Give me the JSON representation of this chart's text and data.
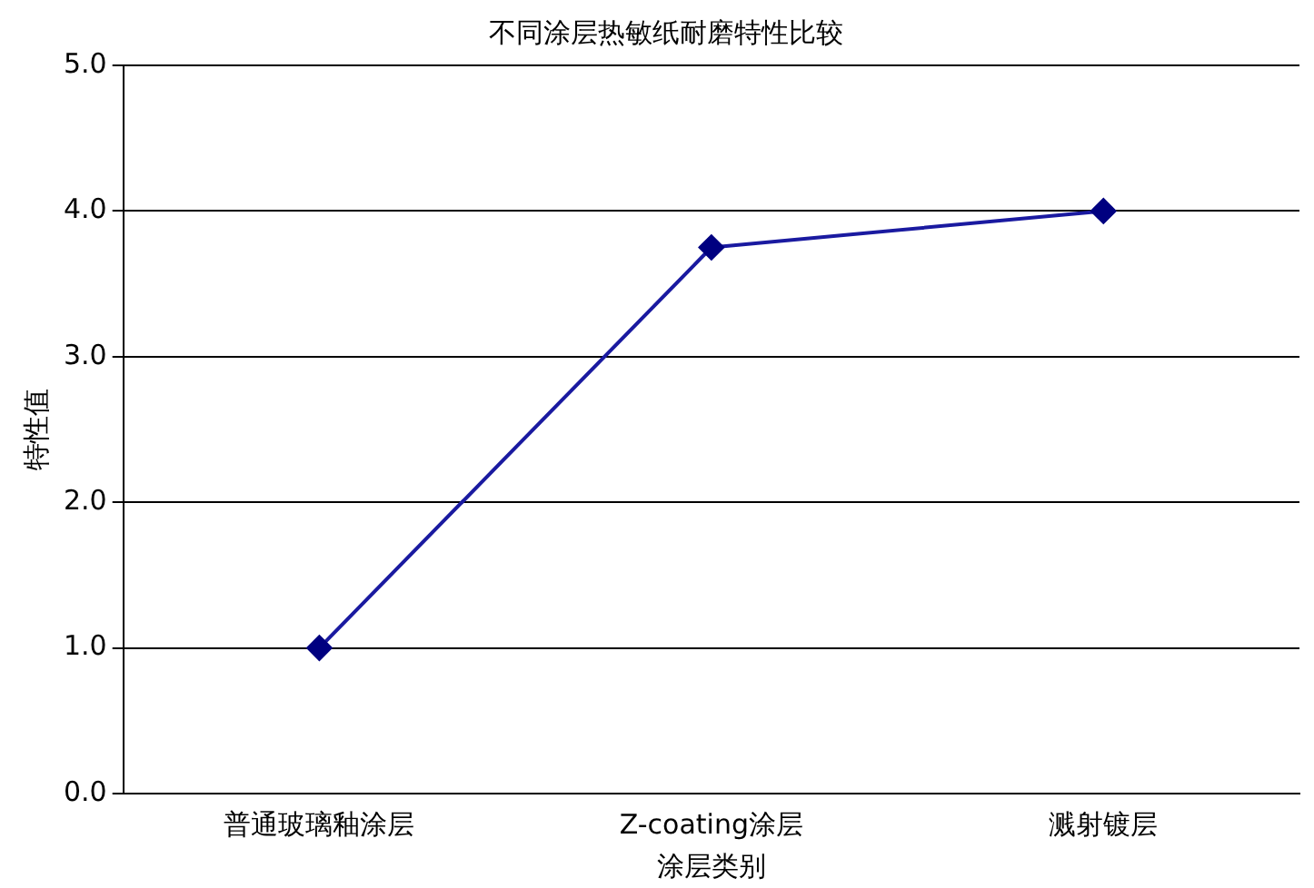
{
  "chart_data": {
    "type": "line",
    "title": "不同涂层热敏纸耐磨特性比较",
    "xlabel": "涂层类别",
    "ylabel": "特性值",
    "categories": [
      "普通玻璃釉涂层",
      "Z-coating涂层",
      "溅射镀层"
    ],
    "series": [
      {
        "color": "#1a1aa0",
        "values": [
          1.0,
          3.75,
          4.0
        ]
      }
    ],
    "ylim": [
      0,
      5
    ],
    "yticks": [
      {
        "value": 0,
        "label": "0.0"
      },
      {
        "value": 1,
        "label": "1.0"
      },
      {
        "value": 2,
        "label": "2.0"
      },
      {
        "value": 3,
        "label": "3.0"
      },
      {
        "value": 4,
        "label": "4.0"
      },
      {
        "value": 5,
        "label": "5.0"
      }
    ],
    "grid": "y",
    "legend": false,
    "marker": "diamond",
    "line_style": "solid"
  }
}
